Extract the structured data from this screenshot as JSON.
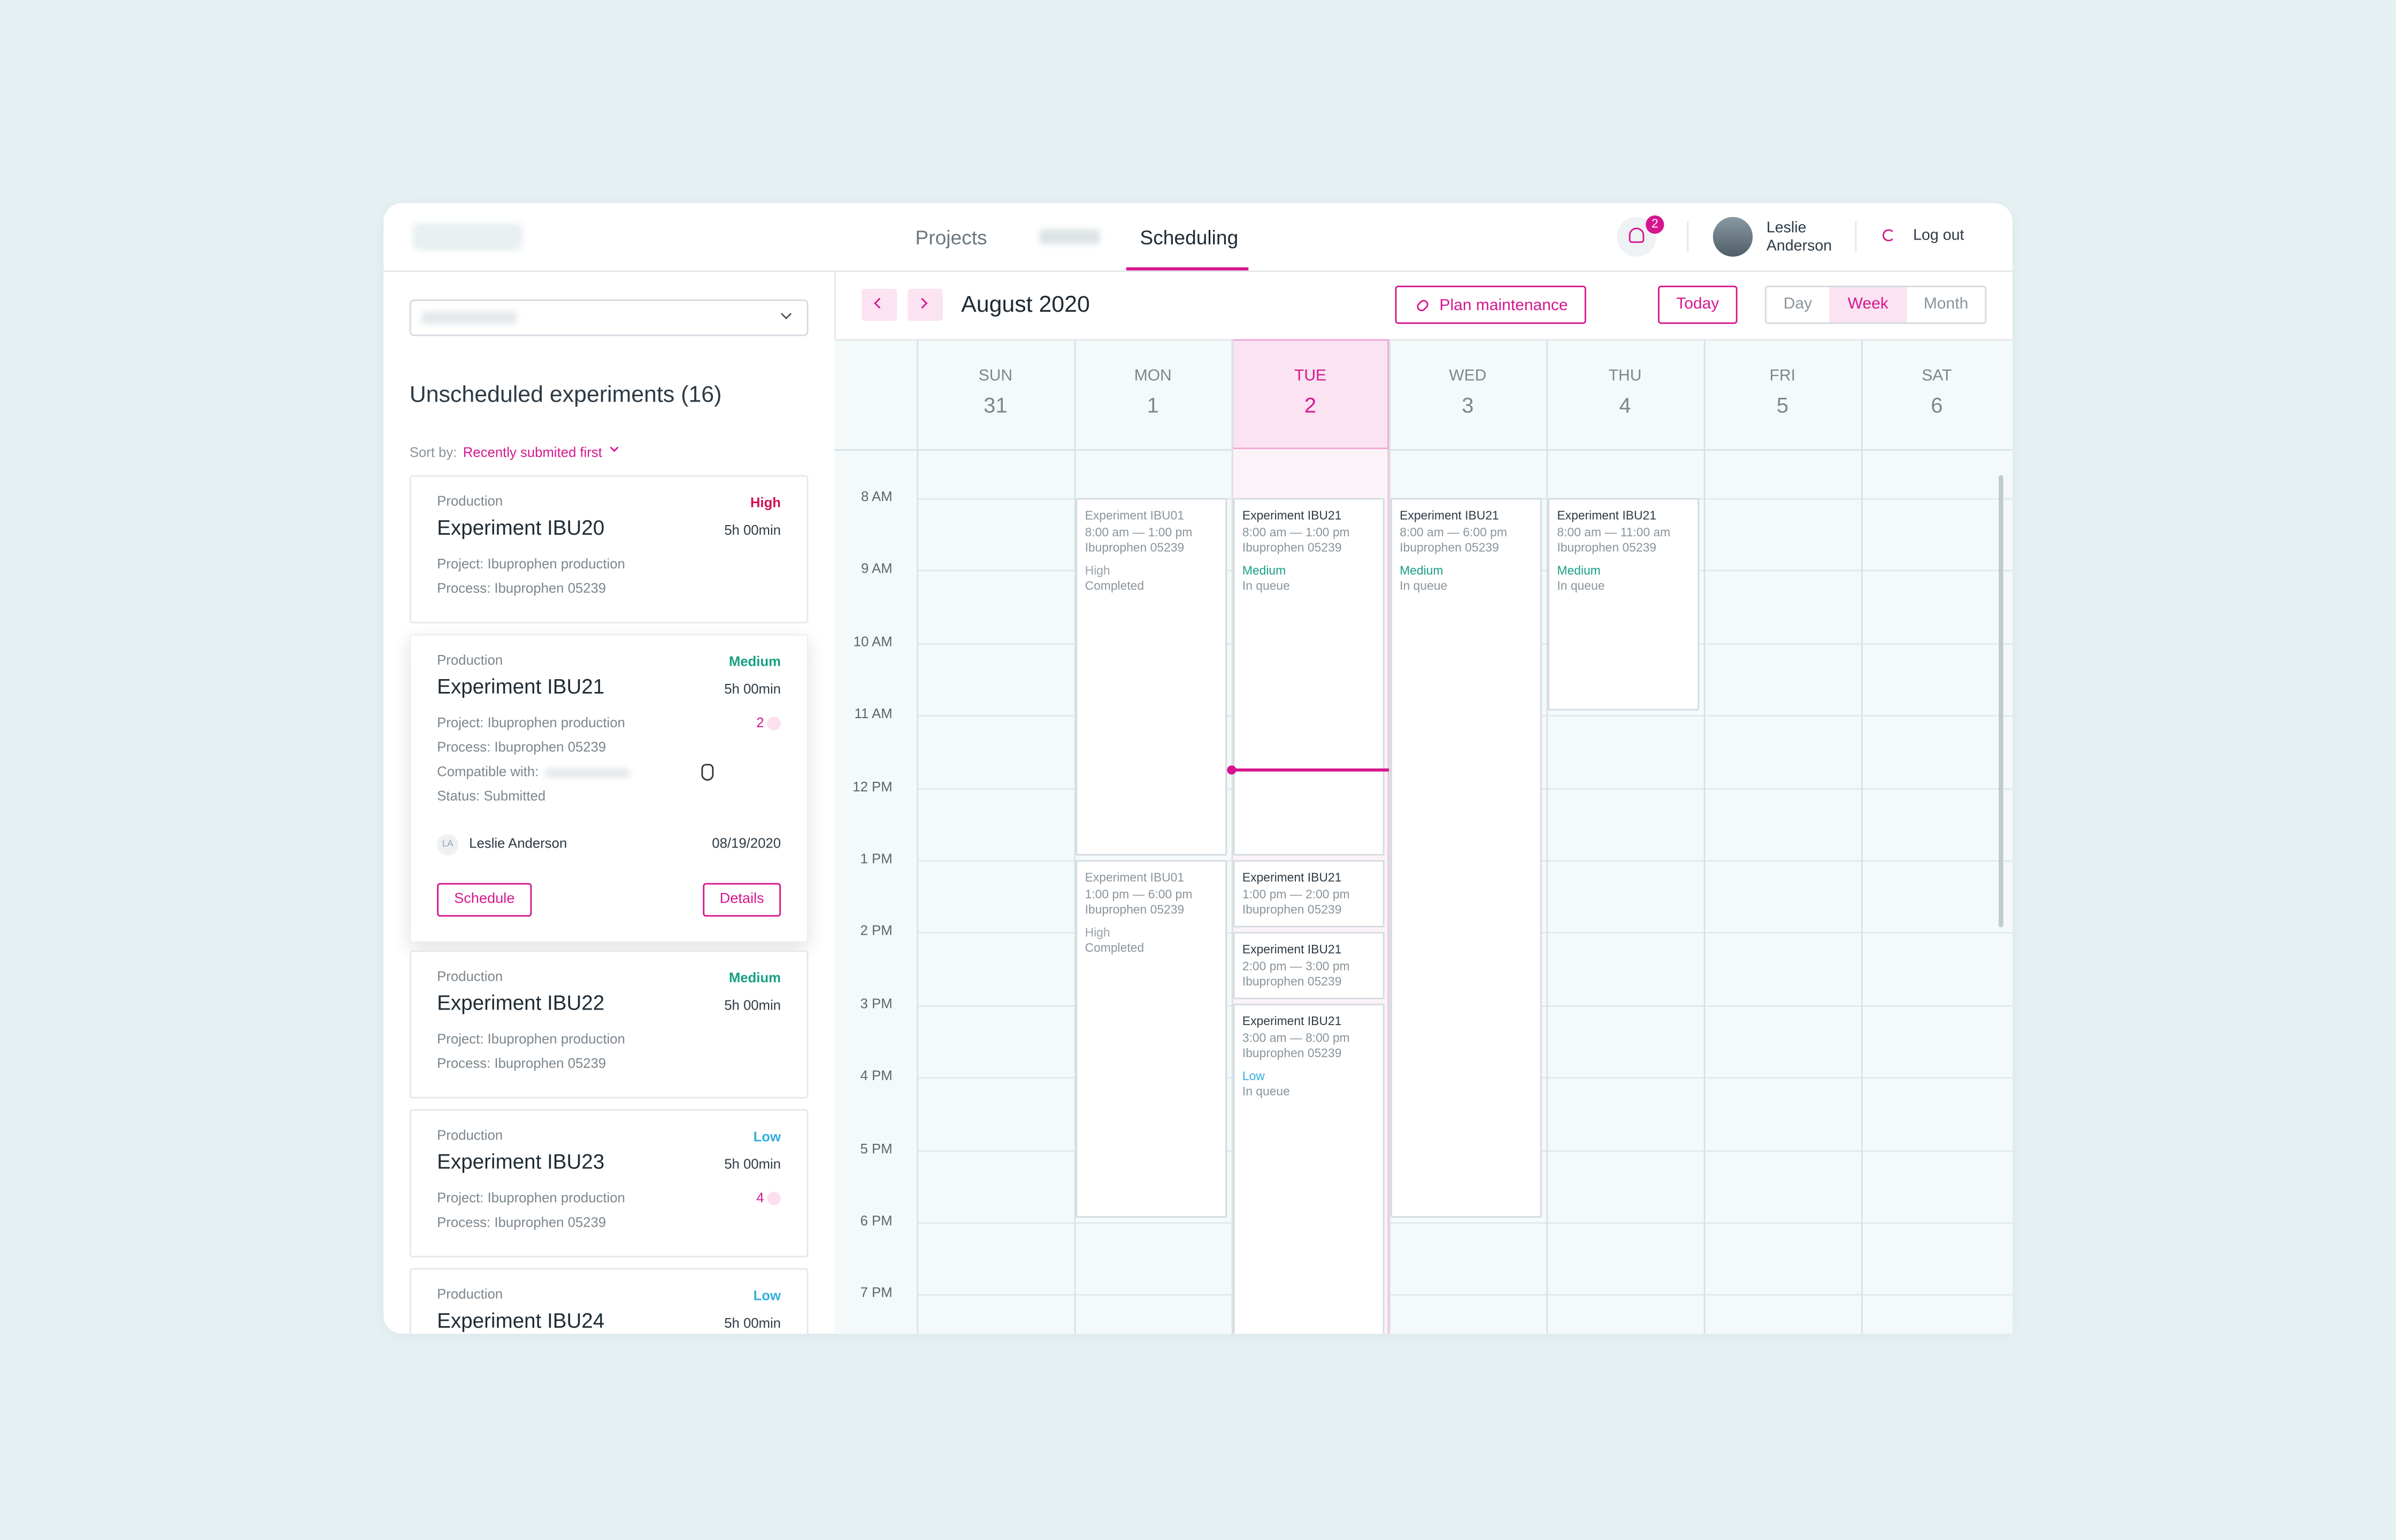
{
  "nav": {
    "tabs": [
      "Projects",
      "Scheduling"
    ],
    "notifications": "2",
    "user": "Leslie Anderson",
    "logout": "Log out"
  },
  "sidebar": {
    "title": "Unscheduled experiments (16)",
    "sort_label": "Sort by:",
    "sort_value": "Recently submited first",
    "cards": [
      {
        "category": "Production",
        "title": "Experiment IBU20",
        "priority": "High",
        "priority_color": "#d0124f",
        "duration": "5h 00min",
        "project": "Project: Ibuprophen production",
        "process": "Process: Ibuprophen 05239"
      },
      {
        "category": "Production",
        "title": "Experiment IBU21",
        "priority": "Medium",
        "priority_color": "#17a085",
        "duration": "5h 00min",
        "project": "Project: Ibuprophen production",
        "process": "Process: Ibuprophen 05239",
        "count": "2",
        "compatible": "Compatible with:",
        "status": "Status: Submitted",
        "initials": "LA",
        "owner": "Leslie Anderson",
        "date": "08/19/2020",
        "actions": [
          "Schedule",
          "Details"
        ]
      },
      {
        "category": "Production",
        "title": "Experiment IBU22",
        "priority": "Medium",
        "priority_color": "#17a085",
        "duration": "5h 00min",
        "project": "Project: Ibuprophen production",
        "process": "Process: Ibuprophen 05239"
      },
      {
        "category": "Production",
        "title": "Experiment IBU23",
        "priority": "Low",
        "priority_color": "#35aede",
        "duration": "5h 00min",
        "project": "Project: Ibuprophen production",
        "process": "Process: Ibuprophen 05239",
        "count": "4"
      },
      {
        "category": "Production",
        "title": "Experiment IBU24",
        "priority": "Low",
        "priority_color": "#35aede",
        "duration": "5h 00min"
      }
    ]
  },
  "calendar": {
    "month": "August 2020",
    "maintenance": "Plan maintenance",
    "today": "Today",
    "views": [
      "Day",
      "Week",
      "Month"
    ],
    "days": [
      {
        "name": "SUN",
        "date": "31"
      },
      {
        "name": "MON",
        "date": "1"
      },
      {
        "name": "TUE",
        "date": "2"
      },
      {
        "name": "WED",
        "date": "3"
      },
      {
        "name": "THU",
        "date": "4"
      },
      {
        "name": "FRI",
        "date": "5"
      },
      {
        "name": "SAT",
        "date": "6"
      }
    ],
    "hours": [
      "8 AM",
      "9 AM",
      "10 AM",
      "11 AM",
      "12 PM",
      "1 PM",
      "2 PM",
      "3 PM",
      "4 PM",
      "5 PM",
      "6 PM",
      "7 PM"
    ],
    "events": [
      {
        "title": "Experiment IBU01",
        "time": "8:00 am — 1:00 pm",
        "process": "Ibuprophen 05239",
        "priority": "High",
        "status": "Completed",
        "priority_color": "#9aa3aa"
      },
      {
        "title": "Experiment IBU01",
        "time": "1:00 pm — 6:00 pm",
        "process": "Ibuprophen 05239",
        "priority": "High",
        "status": "Completed",
        "priority_color": "#9aa3aa"
      },
      {
        "title": "Experiment IBU21",
        "time": "8:00 am — 1:00 pm",
        "process": "Ibuprophen 05239",
        "priority": "Medium",
        "status": "In queue",
        "priority_color": "#17a085"
      },
      {
        "title": "Experiment IBU21",
        "time": "1:00 pm — 2:00 pm",
        "process": "Ibuprophen 05239"
      },
      {
        "title": "Experiment IBU21",
        "time": "2:00 pm — 3:00 pm",
        "process": "Ibuprophen 05239"
      },
      {
        "title": "Experiment IBU21",
        "time": "3:00 am — 8:00 pm",
        "process": "Ibuprophen 05239",
        "priority": "Low",
        "status": "In queue",
        "priority_color": "#35aede"
      },
      {
        "title": "Experiment IBU21",
        "time": "8:00 am — 6:00 pm",
        "process": "Ibuprophen 05239",
        "priority": "Medium",
        "status": "In queue",
        "priority_color": "#17a085"
      },
      {
        "title": "Experiment IBU21",
        "time": "8:00 am — 11:00 am",
        "process": "Ibuprophen 05239",
        "priority": "Medium",
        "status": "In queue",
        "priority_color": "#17a085"
      }
    ]
  }
}
